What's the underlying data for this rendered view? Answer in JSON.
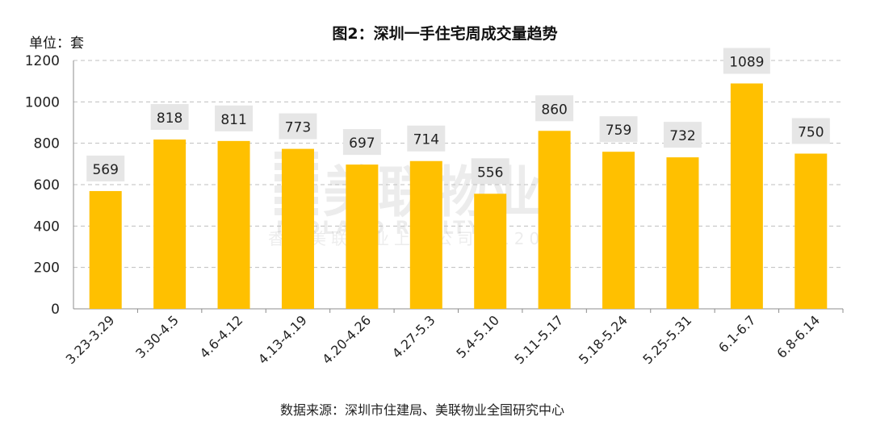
{
  "chart_data": {
    "type": "bar",
    "title": "图2：深圳一手住宅周成交量趋势",
    "unit_label": "单位：套",
    "categories": [
      "3.23-3.29",
      "3.30-4.5",
      "4.6-4.12",
      "4.13-4.19",
      "4.20-4.26",
      "4.27-5.3",
      "5.4-5.10",
      "5.11-5.17",
      "5.18-5.24",
      "5.25-5.31",
      "6.1-6.7",
      "6.8-6.14"
    ],
    "values": [
      569,
      818,
      811,
      773,
      697,
      714,
      556,
      860,
      759,
      732,
      1089,
      750
    ],
    "ylim": [
      0,
      1200
    ],
    "yticks": [
      0,
      200,
      400,
      600,
      800,
      1000,
      1200
    ],
    "grid": true,
    "grid_style": "dashed",
    "data_labels": true,
    "colors": {
      "bar": "#FFC000",
      "label_bg": "#E6E6E6",
      "grid": "#BFBFBF",
      "axis": "#8C8C8C"
    }
  },
  "source": "数据来源：深圳市住建局、美联物业全国研究中心",
  "watermark": {
    "brand": "美联物业",
    "latin": "MIDLAND REALTY",
    "line": "香港美联物业上市公司（1200）"
  }
}
